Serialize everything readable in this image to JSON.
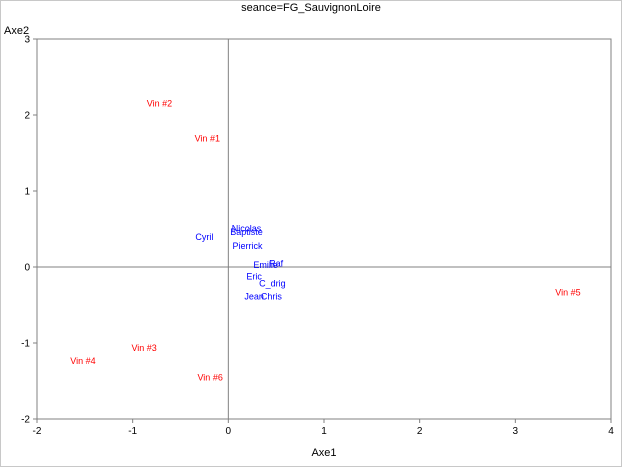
{
  "chart_data": {
    "type": "scatter",
    "title": "seance=FG_SauvignonLoire",
    "xlabel": "Axe1",
    "ylabel": "Axe2",
    "xlim": [
      -2,
      4
    ],
    "ylim": [
      -2,
      3
    ],
    "xticks": [
      -2,
      -1,
      0,
      1,
      2,
      3,
      4
    ],
    "yticks": [
      -2,
      -1,
      0,
      1,
      2,
      3
    ],
    "reference_lines": {
      "x": 0,
      "y": 0
    },
    "grid": false,
    "series": [
      {
        "color": "#ff0000",
        "points": [
          {
            "label": "Vin #2",
            "x": -0.72,
            "y": 2.16
          },
          {
            "label": "Vin #1",
            "x": -0.22,
            "y": 1.7
          },
          {
            "label": "Vin #5",
            "x": 3.55,
            "y": -0.33
          },
          {
            "label": "Vin #3",
            "x": -0.88,
            "y": -1.06
          },
          {
            "label": "Vin #4",
            "x": -1.52,
            "y": -1.23
          },
          {
            "label": "Vin #6",
            "x": -0.19,
            "y": -1.45
          }
        ]
      },
      {
        "color": "#0000ff",
        "points": [
          {
            "label": "Nicolas",
            "x": 0.19,
            "y": 0.51
          },
          {
            "label": "Baptiste",
            "x": 0.19,
            "y": 0.47
          },
          {
            "label": "Cyril",
            "x": -0.25,
            "y": 0.4
          },
          {
            "label": "Pierrick",
            "x": 0.2,
            "y": 0.28
          },
          {
            "label": "Raf",
            "x": 0.5,
            "y": 0.05
          },
          {
            "label": "Emilie",
            "x": 0.39,
            "y": 0.03
          },
          {
            "label": "Eric",
            "x": 0.27,
            "y": -0.12
          },
          {
            "label": "C_drig",
            "x": 0.46,
            "y": -0.21
          },
          {
            "label": "Jean",
            "x": 0.27,
            "y": -0.38
          },
          {
            "label": "Chris",
            "x": 0.45,
            "y": -0.38
          }
        ]
      }
    ]
  }
}
